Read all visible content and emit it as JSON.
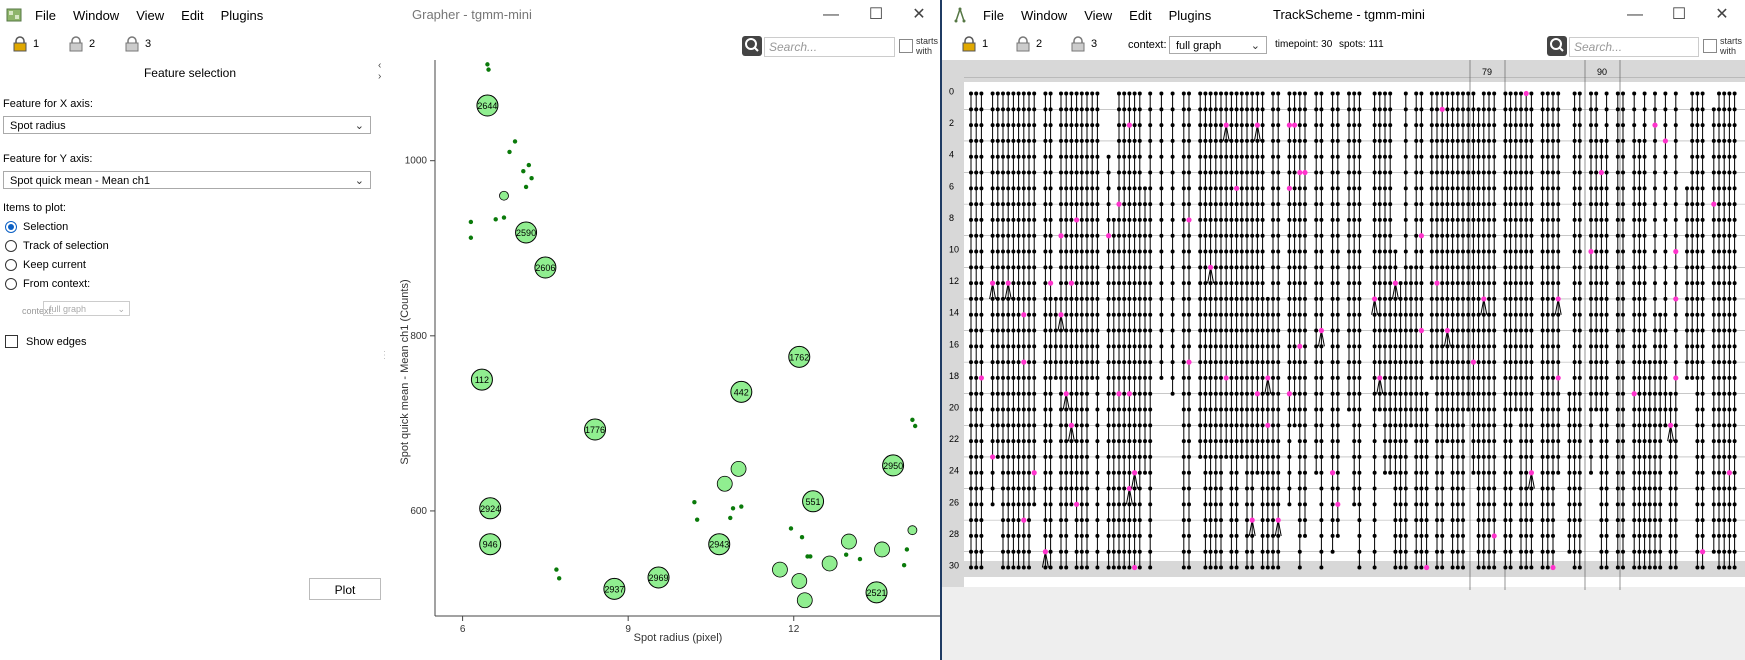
{
  "grapher": {
    "title": "Grapher - tgmm-mini",
    "menu": [
      "File",
      "Window",
      "View",
      "Edit",
      "Plugins"
    ],
    "locks": [
      "1",
      "2",
      "3"
    ],
    "search_placeholder": "Search...",
    "starts_with": [
      "starts",
      "with"
    ],
    "panel": {
      "title": "Feature selection",
      "x_label": "Feature for X axis:",
      "x_value": "Spot radius",
      "y_label": "Feature for Y axis:",
      "y_value": "Spot quick mean - Mean ch1",
      "items_label": "Items to plot:",
      "options": [
        "Selection",
        "Track of selection",
        "Keep current",
        "From context:"
      ],
      "selected_option": "Selection",
      "context_label": "context:",
      "context_value": "full graph",
      "show_edges": "Show edges",
      "plot_button": "Plot"
    }
  },
  "chart_data": {
    "type": "scatter",
    "xlabel": "Spot radius (pixel)",
    "ylabel": "Spot quick mean - Mean ch1 (Counts)",
    "xlim": [
      5.5,
      14.65
    ],
    "ylim": [
      480,
      1115
    ],
    "xticks": [
      "6",
      "9",
      "12"
    ],
    "yticks": [
      "600",
      "800",
      "1000"
    ],
    "marker_color": "#90ee90",
    "dot_color": "#0a7a0a",
    "labeled_points": [
      {
        "id": "2644",
        "x": 6.45,
        "y": 1063
      },
      {
        "id": "2590",
        "x": 7.15,
        "y": 918
      },
      {
        "id": "2606",
        "x": 7.5,
        "y": 878
      },
      {
        "id": "112",
        "x": 6.35,
        "y": 750
      },
      {
        "id": "1776",
        "x": 8.4,
        "y": 693
      },
      {
        "id": "2924",
        "x": 6.5,
        "y": 603
      },
      {
        "id": "946",
        "x": 6.5,
        "y": 562
      },
      {
        "id": "2937",
        "x": 8.75,
        "y": 511
      },
      {
        "id": "2969",
        "x": 9.55,
        "y": 524
      },
      {
        "id": "2943",
        "x": 10.65,
        "y": 562
      },
      {
        "id": "442",
        "x": 11.05,
        "y": 736
      },
      {
        "id": "1762",
        "x": 12.1,
        "y": 776
      },
      {
        "id": "551",
        "x": 12.35,
        "y": 611
      },
      {
        "id": "2521",
        "x": 13.5,
        "y": 507
      },
      {
        "id": "2950",
        "x": 13.8,
        "y": 652
      }
    ],
    "unlabeled_circles": [
      {
        "x": 6.75,
        "y": 960
      },
      {
        "x": 10.75,
        "y": 631
      },
      {
        "x": 11.0,
        "y": 648
      },
      {
        "x": 11.75,
        "y": 533
      },
      {
        "x": 12.1,
        "y": 520
      },
      {
        "x": 12.2,
        "y": 498
      },
      {
        "x": 12.65,
        "y": 540
      },
      {
        "x": 14.15,
        "y": 578
      },
      {
        "x": 13.0,
        "y": 565
      },
      {
        "x": 13.6,
        "y": 556
      }
    ],
    "small_points": [
      {
        "x": 6.45,
        "y": 1110
      },
      {
        "x": 6.47,
        "y": 1104
      },
      {
        "x": 6.15,
        "y": 930
      },
      {
        "x": 6.15,
        "y": 912
      },
      {
        "x": 6.6,
        "y": 933
      },
      {
        "x": 6.75,
        "y": 935
      },
      {
        "x": 6.85,
        "y": 1010
      },
      {
        "x": 6.95,
        "y": 1022
      },
      {
        "x": 7.1,
        "y": 988
      },
      {
        "x": 7.2,
        "y": 995
      },
      {
        "x": 7.15,
        "y": 970
      },
      {
        "x": 7.25,
        "y": 980
      },
      {
        "x": 7.7,
        "y": 533
      },
      {
        "x": 7.75,
        "y": 523
      },
      {
        "x": 10.2,
        "y": 610
      },
      {
        "x": 10.25,
        "y": 590
      },
      {
        "x": 10.9,
        "y": 603
      },
      {
        "x": 10.85,
        "y": 592
      },
      {
        "x": 11.05,
        "y": 605
      },
      {
        "x": 11.95,
        "y": 580
      },
      {
        "x": 12.15,
        "y": 570
      },
      {
        "x": 12.25,
        "y": 548
      },
      {
        "x": 12.3,
        "y": 548
      },
      {
        "x": 12.95,
        "y": 550
      },
      {
        "x": 13.2,
        "y": 545
      },
      {
        "x": 14.05,
        "y": 556
      },
      {
        "x": 14.0,
        "y": 538
      },
      {
        "x": 14.15,
        "y": 704
      },
      {
        "x": 14.2,
        "y": 697
      }
    ]
  },
  "trackscheme": {
    "title": "TrackScheme - tgmm-mini",
    "menu": [
      "File",
      "Window",
      "View",
      "Edit",
      "Plugins"
    ],
    "locks": [
      "1",
      "2",
      "3"
    ],
    "context_label": "context:",
    "context_value": "full graph",
    "timepoint": "timepoint: 30",
    "spots": "spots: 111",
    "search_placeholder": "Search...",
    "starts_with": [
      "starts",
      "with"
    ],
    "column_headers": [
      "79",
      "90"
    ],
    "row_labels": [
      "0",
      "2",
      "4",
      "6",
      "8",
      "10",
      "12",
      "14",
      "16",
      "18",
      "20",
      "22",
      "24",
      "26",
      "28",
      "30"
    ],
    "spot_color": "#000000",
    "selected_color": "#ff33cc"
  }
}
